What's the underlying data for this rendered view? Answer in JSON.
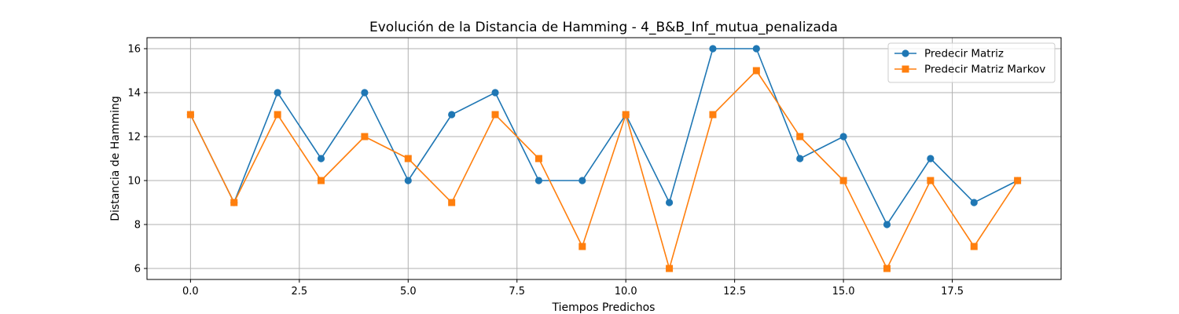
{
  "chart_data": {
    "type": "line",
    "title": "Evolución de la Distancia de Hamming - 4_B&B_Inf_mutua_penalizada",
    "xlabel": "Tiempos Predichos",
    "ylabel": "Distancia de Hamming",
    "x": [
      0,
      1,
      2,
      3,
      4,
      5,
      6,
      7,
      8,
      9,
      10,
      11,
      12,
      13,
      14,
      15,
      16,
      17,
      18,
      19
    ],
    "xlim": [
      -1,
      20
    ],
    "ylim": [
      5.5,
      16.5
    ],
    "xticks": [
      0.0,
      2.5,
      5.0,
      7.5,
      10.0,
      12.5,
      15.0,
      17.5
    ],
    "xtick_labels": [
      "0.0",
      "2.5",
      "5.0",
      "7.5",
      "10.0",
      "12.5",
      "15.0",
      "17.5"
    ],
    "yticks": [
      6,
      8,
      10,
      12,
      14,
      16
    ],
    "ytick_labels": [
      "6",
      "8",
      "10",
      "12",
      "14",
      "16"
    ],
    "grid": true,
    "legend_position": "upper right",
    "series": [
      {
        "name": "Predecir Matriz",
        "color": "#1f77b4",
        "marker": "circle",
        "values": [
          13,
          9,
          14,
          11,
          14,
          10,
          13,
          14,
          10,
          10,
          13,
          9,
          16,
          16,
          11,
          12,
          8,
          11,
          9,
          10
        ]
      },
      {
        "name": "Predecir Matriz Markov",
        "color": "#ff7f0e",
        "marker": "square",
        "values": [
          13,
          9,
          13,
          10,
          12,
          11,
          9,
          13,
          11,
          7,
          13,
          6,
          13,
          15,
          12,
          10,
          6,
          10,
          7,
          10
        ]
      }
    ]
  }
}
